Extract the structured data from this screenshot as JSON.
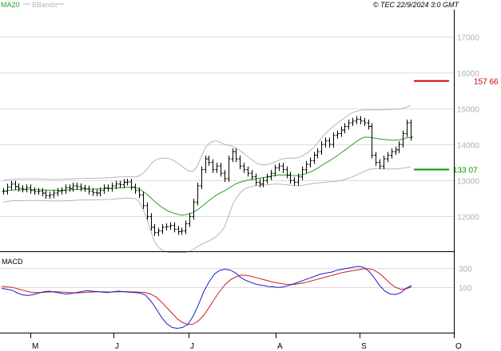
{
  "header": {
    "legend_ma": "MA20",
    "legend_bb": "BBands",
    "copyright": "© TEC 22/9/2024 3:0 GMT"
  },
  "colors": {
    "candle": "#000000",
    "ma": "#2a9d2a",
    "bbands": "#b5b5b5",
    "resistance": "#cc0000",
    "support": "#009900",
    "macd_line": "#1d1dcc",
    "signal_line": "#cc1d1d",
    "grid": "#dcdcdc"
  },
  "chart_data": [
    {
      "type": "ohlc",
      "title": "",
      "y_ticks": [
        "12000",
        "13000",
        "14000",
        "15000",
        "16000",
        "17000"
      ],
      "ylim": [
        11100,
        17700
      ],
      "x_ticks": [
        "M",
        "J",
        "J",
        "A",
        "S",
        "O"
      ],
      "grid": true,
      "levels": [
        {
          "name": "resistance",
          "value": 15766,
          "label": "157 66"
        },
        {
          "name": "support",
          "value": 13307,
          "label": "133 07"
        }
      ],
      "series": [
        {
          "name": "price",
          "close": [
            12700,
            12820,
            12900,
            12830,
            12780,
            12760,
            12800,
            12720,
            12690,
            12700,
            12650,
            12580,
            12600,
            12650,
            12700,
            12720,
            12800,
            12780,
            12850,
            12830,
            12790,
            12770,
            12700,
            12660,
            12650,
            12720,
            12800,
            12780,
            12850,
            12900,
            12880,
            12950,
            12960,
            12820,
            12720,
            12600,
            12300,
            12000,
            11700,
            11550,
            11600,
            11700,
            11720,
            11750,
            11650,
            11580,
            11600,
            11800,
            12000,
            12400,
            12850,
            13300,
            13600,
            13500,
            13300,
            13400,
            13200,
            13050,
            13600,
            13800,
            13600,
            13400,
            13300,
            13200,
            13100,
            12950,
            12900,
            13000,
            13100,
            13200,
            13350,
            13400,
            13300,
            13150,
            13000,
            12950,
            13100,
            13300,
            13450,
            13550,
            13700,
            13800,
            14000,
            14100,
            14000,
            14250,
            14300,
            14400,
            14500,
            14600,
            14650,
            14700,
            14650,
            14600,
            14500,
            13700,
            13500,
            13400,
            13600,
            13700,
            13800,
            13850,
            14000,
            14300,
            14600,
            14200
          ]
        },
        {
          "name": "MA20",
          "values": [
            12700,
            12720,
            12730,
            12740,
            12740,
            12740,
            12745,
            12745,
            12745,
            12745,
            12740,
            12735,
            12730,
            12730,
            12730,
            12730,
            12735,
            12740,
            12745,
            12750,
            12755,
            12760,
            12760,
            12760,
            12760,
            12765,
            12770,
            12775,
            12780,
            12790,
            12795,
            12800,
            12810,
            12805,
            12795,
            12770,
            12700,
            12620,
            12520,
            12420,
            12330,
            12250,
            12180,
            12130,
            12090,
            12060,
            12040,
            12050,
            12080,
            12120,
            12180,
            12260,
            12350,
            12440,
            12520,
            12600,
            12660,
            12710,
            12780,
            12850,
            12910,
            12950,
            12980,
            13010,
            13030,
            13040,
            13060,
            13080,
            13100,
            13120,
            13140,
            13150,
            13155,
            13150,
            13140,
            13130,
            13140,
            13160,
            13190,
            13230,
            13280,
            13340,
            13410,
            13480,
            13540,
            13610,
            13680,
            13760,
            13840,
            13920,
            14000,
            14080,
            14150,
            14200,
            14200,
            14190,
            14170,
            14150,
            14140,
            14130,
            14120,
            14120,
            14130,
            14150,
            14180,
            14200
          ]
        },
        {
          "name": "BBands upper",
          "values": [
            13000,
            13020,
            13030,
            13040,
            13040,
            13040,
            13045,
            13045,
            13045,
            13045,
            13040,
            13035,
            13030,
            13030,
            13030,
            13030,
            13035,
            13040,
            13045,
            13050,
            13055,
            13060,
            13060,
            13060,
            13060,
            13065,
            13070,
            13075,
            13080,
            13090,
            13095,
            13100,
            13110,
            13105,
            13095,
            13120,
            13200,
            13300,
            13450,
            13550,
            13600,
            13620,
            13620,
            13600,
            13550,
            13480,
            13400,
            13320,
            13250,
            13250,
            13400,
            13650,
            13900,
            14020,
            14080,
            14100,
            14060,
            14000,
            13980,
            13950,
            13900,
            13830,
            13750,
            13660,
            13580,
            13500,
            13450,
            13430,
            13440,
            13470,
            13510,
            13560,
            13600,
            13620,
            13620,
            13620,
            13640,
            13680,
            13740,
            13820,
            13920,
            14040,
            14180,
            14300,
            14400,
            14500,
            14580,
            14660,
            14740,
            14820,
            14880,
            14920,
            14950,
            14960,
            14960,
            14960,
            14960,
            14960,
            14960,
            14970,
            14970,
            14980,
            14980,
            15000,
            15040,
            15080
          ]
        },
        {
          "name": "BBands lower",
          "values": [
            12400,
            12420,
            12430,
            12440,
            12440,
            12440,
            12445,
            12445,
            12445,
            12445,
            12440,
            12435,
            12430,
            12430,
            12430,
            12430,
            12435,
            12440,
            12445,
            12450,
            12455,
            12460,
            12460,
            12460,
            12460,
            12465,
            12470,
            12475,
            12480,
            12490,
            12495,
            12500,
            12510,
            12505,
            12495,
            12420,
            12200,
            11940,
            11600,
            11300,
            11150,
            11060,
            11020,
            11000,
            11000,
            11000,
            11000,
            11000,
            11030,
            11090,
            11160,
            11220,
            11280,
            11320,
            11380,
            11450,
            11560,
            11700,
            12000,
            12300,
            12500,
            12650,
            12750,
            12800,
            12830,
            12850,
            12860,
            12870,
            12880,
            12890,
            12900,
            12900,
            12890,
            12880,
            12870,
            12850,
            12850,
            12860,
            12880,
            12900,
            12920,
            12930,
            12940,
            12950,
            12960,
            12970,
            12980,
            13000,
            13030,
            13060,
            13100,
            13150,
            13200,
            13250,
            13300,
            13320,
            13330,
            13330,
            13330,
            13320,
            13320,
            13320,
            13330,
            13340,
            13360,
            13380
          ]
        }
      ]
    },
    {
      "type": "line",
      "title": "MACD",
      "y_ticks": [
        "100",
        "300"
      ],
      "ylim": [
        -350,
        420
      ],
      "grid": true,
      "series": [
        {
          "name": "macd",
          "values": [
            90,
            80,
            70,
            40,
            20,
            15,
            25,
            40,
            55,
            60,
            50,
            40,
            30,
            35,
            45,
            55,
            65,
            60,
            55,
            50,
            45,
            55,
            60,
            55,
            50,
            45,
            40,
            20,
            -40,
            -120,
            -210,
            -280,
            -320,
            -330,
            -320,
            -290,
            -200,
            -80,
            60,
            160,
            240,
            280,
            290,
            280,
            250,
            200,
            170,
            150,
            130,
            120,
            110,
            105,
            100,
            105,
            120,
            140,
            160,
            180,
            200,
            220,
            240,
            250,
            260,
            280,
            290,
            300,
            310,
            320,
            310,
            270,
            200,
            120,
            60,
            30,
            25,
            45,
            90,
            120
          ]
        },
        {
          "name": "signal",
          "values": [
            110,
            105,
            100,
            85,
            70,
            55,
            45,
            45,
            48,
            52,
            55,
            52,
            48,
            44,
            42,
            44,
            48,
            52,
            54,
            54,
            52,
            52,
            54,
            55,
            54,
            52,
            50,
            45,
            30,
            0,
            -50,
            -110,
            -170,
            -230,
            -270,
            -290,
            -285,
            -250,
            -190,
            -110,
            -20,
            60,
            130,
            180,
            210,
            230,
            225,
            215,
            200,
            185,
            170,
            155,
            145,
            135,
            130,
            132,
            140,
            150,
            165,
            180,
            195,
            210,
            225,
            240,
            255,
            265,
            275,
            285,
            295,
            295,
            280,
            245,
            195,
            140,
            100,
            80,
            85,
            105
          ]
        }
      ]
    }
  ]
}
